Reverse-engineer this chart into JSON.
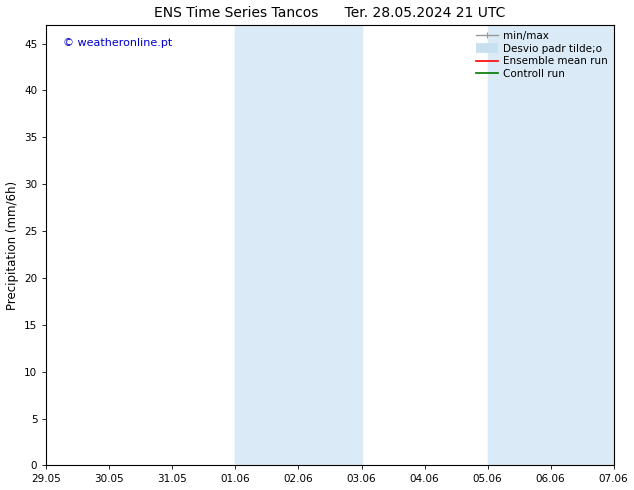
{
  "title": "ENS Time Series Tancos      Ter. 28.05.2024 21 UTC",
  "ylabel": "Precipitation (mm/6h)",
  "xtick_labels": [
    "29.05",
    "30.05",
    "31.05",
    "01.06",
    "02.06",
    "03.06",
    "04.06",
    "05.06",
    "06.06",
    "07.06"
  ],
  "ylim": [
    0,
    47
  ],
  "yticks": [
    0,
    5,
    10,
    15,
    20,
    25,
    30,
    35,
    40,
    45
  ],
  "shade_regions": [
    {
      "xstart": 3,
      "xend": 5,
      "color": "#daeaf6"
    },
    {
      "xstart": 7,
      "xend": 9,
      "color": "#daeaf6"
    }
  ],
  "watermark": "© weatheronline.pt",
  "watermark_color": "#0000cc",
  "bg_color": "#ffffff",
  "legend_items": [
    {
      "label": "min/max",
      "color": "#999999",
      "lw": 1.0
    },
    {
      "label": "Desvio padr tilde;o",
      "color": "#c8dff0",
      "lw": 7
    },
    {
      "label": "Ensemble mean run",
      "color": "#ff0000",
      "lw": 1.2
    },
    {
      "label": "Controll run",
      "color": "#007700",
      "lw": 1.2
    }
  ],
  "title_fontsize": 10,
  "tick_fontsize": 7.5,
  "label_fontsize": 8.5,
  "watermark_fontsize": 8,
  "legend_fontsize": 7.5
}
